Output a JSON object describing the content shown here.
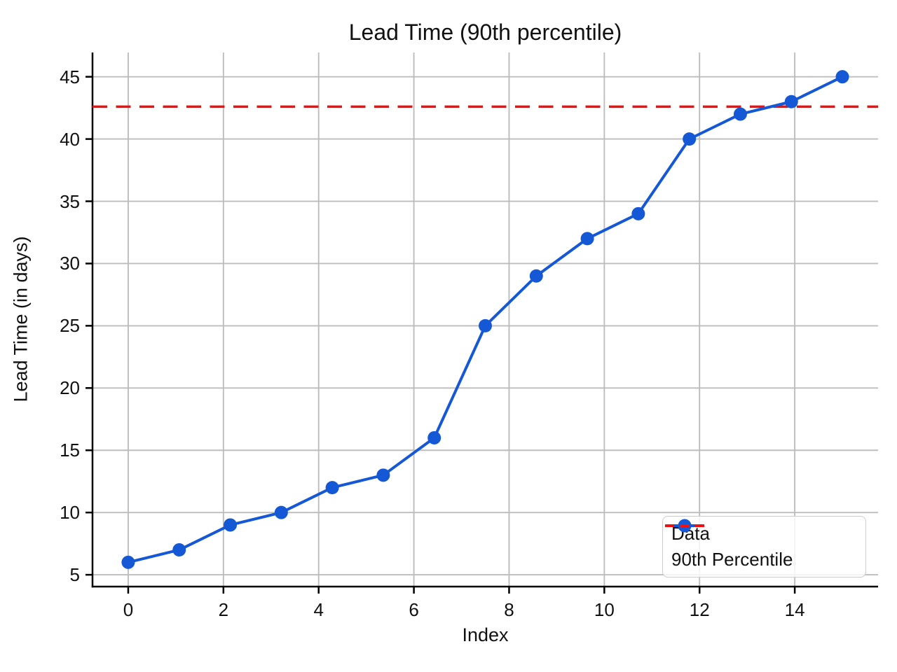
{
  "chart_data": {
    "type": "line",
    "title": "Lead Time (90th percentile)",
    "xlabel": "Index",
    "ylabel": "Lead Time (in days)",
    "xlim": [
      -0.75,
      15.75
    ],
    "ylim": [
      4.05,
      46.95
    ],
    "xticks": [
      0,
      2,
      4,
      6,
      8,
      10,
      12,
      14
    ],
    "yticks": [
      5,
      10,
      15,
      20,
      25,
      30,
      35,
      40,
      45
    ],
    "grid": true,
    "grid_color": "#bdbdbd",
    "legend_position": "lower right",
    "series": [
      {
        "name": "Data",
        "style": "solid-with-markers",
        "color": "#1558d6",
        "x": [
          0,
          1.0714,
          2.1429,
          3.2143,
          4.2857,
          5.3571,
          6.4286,
          7.5,
          8.5714,
          9.6429,
          10.7143,
          11.7857,
          12.8571,
          13.9286,
          15
        ],
        "y": [
          6,
          7,
          9,
          10,
          12,
          13,
          16,
          25,
          29,
          32,
          34,
          40,
          42,
          43,
          45
        ]
      },
      {
        "name": "90th Percentile",
        "style": "horizontal-dashed",
        "color": "#f01010",
        "value": 42.6
      }
    ]
  }
}
